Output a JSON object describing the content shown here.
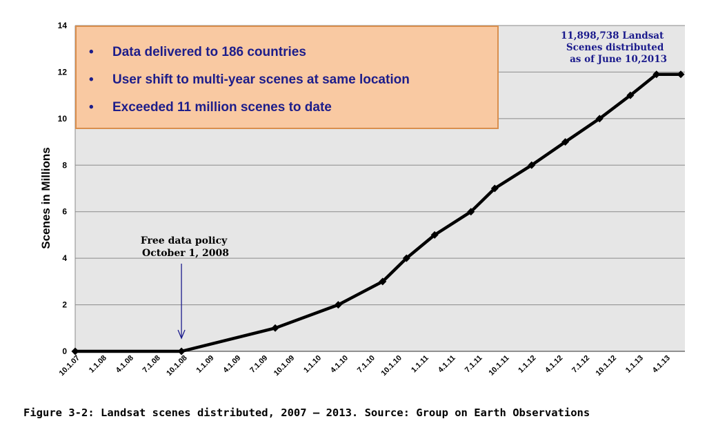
{
  "chart_data": {
    "type": "line",
    "title": "",
    "xlabel": "",
    "ylabel": "Scenes in Millions",
    "ylim": [
      0,
      14
    ],
    "y_ticks": [
      0,
      2,
      4,
      6,
      8,
      10,
      12,
      14
    ],
    "x_ticks": [
      "10.1.07",
      "1.1.08",
      "4.1.08",
      "7.1.08",
      "10.1.08",
      "1.1.09",
      "4.1.09",
      "7.1.09",
      "10.1.09",
      "1.1.10",
      "4.1.10",
      "7.1.10",
      "10.1.10",
      "1.1.11",
      "4.1.11",
      "7.1.11",
      "10.1.11",
      "1.1.12",
      "4.1.12",
      "7.1.12",
      "10.1.12",
      "1.1.13",
      "4.1.13"
    ],
    "x_date_range": [
      "2007-10-01",
      "2013-07-01"
    ],
    "grid": "horizontal",
    "plot_background": "#e6e6e6",
    "line_color": "#000000",
    "series": [
      {
        "dates": [
          "2007-10-01",
          "2008-10-01",
          "2009-08-20",
          "2010-03-25",
          "2010-08-25",
          "2010-11-15",
          "2011-02-20",
          "2011-06-25",
          "2011-09-15",
          "2012-01-20",
          "2012-05-15",
          "2012-09-10",
          "2012-12-25",
          "2013-03-25",
          "2013-06-10"
        ],
        "values": [
          0,
          0,
          1,
          2,
          3,
          4,
          5,
          6,
          7,
          8,
          9,
          10,
          11,
          11.9,
          11.9
        ]
      }
    ],
    "annotations": {
      "policy_lines": [
        "Free data policy",
        "October 1, 2008"
      ],
      "policy_date": "2008-10-01",
      "corner_lines": [
        "11,898,738 Landsat",
        "Scenes distributed",
        "as of June 10,2013"
      ],
      "corner_color": "#1a1a8c",
      "arrow_color": "#1a1a8c"
    },
    "textbox": {
      "bullets": [
        "Data delivered to 186 countries",
        "User shift to multi-year scenes at same location",
        "Exceeded 11 million scenes to date"
      ],
      "fill": "#f9c9a2",
      "border": "#d98e4d",
      "text_color": "#1d1d8a"
    }
  },
  "caption": "Figure 3-2: Landsat scenes distributed, 2007 – 2013. Source: Group on Earth Observations"
}
